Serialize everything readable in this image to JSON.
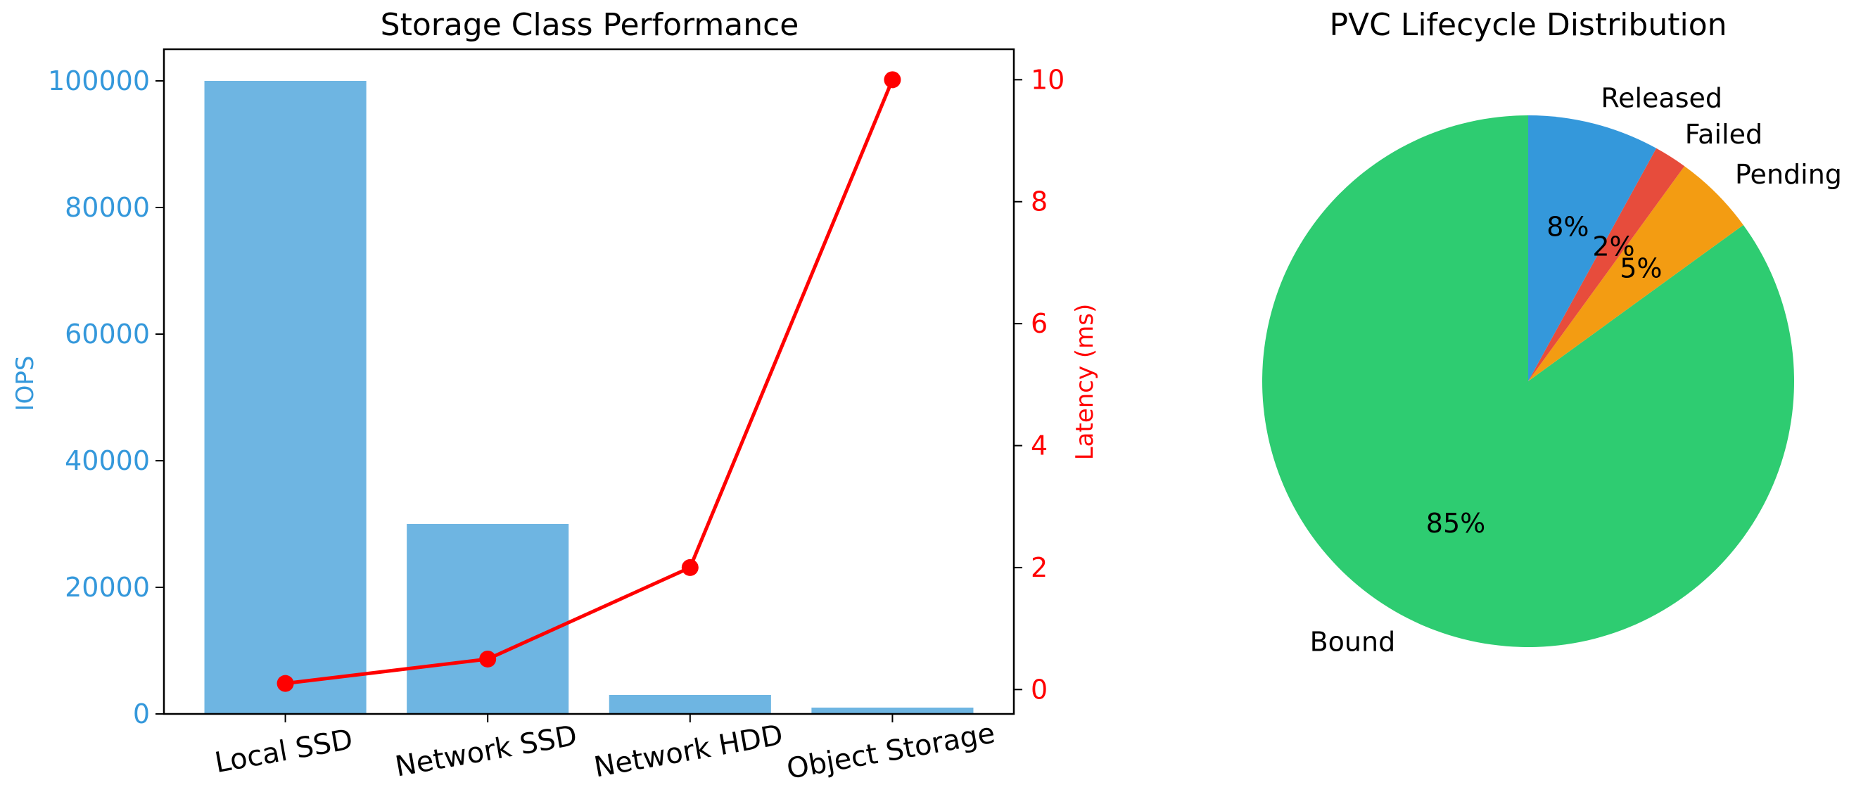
{
  "colors": {
    "bar": "#6eb5e2",
    "iops_axis": "#3498db",
    "latency": "#ff0000",
    "axes": "#000000",
    "background": "#ffffff"
  },
  "chart_data": [
    {
      "type": "bar",
      "title": "Storage Class Performance",
      "categories": [
        "Local SSD",
        "Network SSD",
        "Network HDD",
        "Object Storage"
      ],
      "series": [
        {
          "name": "IOPS",
          "axis": "left",
          "kind": "bar",
          "values": [
            100000,
            30000,
            3000,
            1000
          ]
        },
        {
          "name": "Latency (ms)",
          "axis": "right",
          "kind": "line",
          "values": [
            0.1,
            0.5,
            2,
            10
          ]
        }
      ],
      "ylabel": "IOPS",
      "ylabel_right": "Latency (ms)",
      "ylim": [
        0,
        105000
      ],
      "ylim_right": [
        -0.4,
        10.5
      ],
      "yticks": [
        "0",
        "20000",
        "40000",
        "60000",
        "80000",
        "100000"
      ],
      "yticks_right": [
        "0",
        "2",
        "4",
        "6",
        "8",
        "10"
      ],
      "grid": false,
      "legend": "none"
    },
    {
      "type": "pie",
      "title": "PVC Lifecycle Distribution",
      "slices": [
        {
          "label": "Bound",
          "value": 85,
          "pct_label": "85%",
          "color": "#2ecc71"
        },
        {
          "label": "Pending",
          "value": 5,
          "pct_label": "5%",
          "color": "#f39c12"
        },
        {
          "label": "Failed",
          "value": 2,
          "pct_label": "2%",
          "color": "#e74c3c"
        },
        {
          "label": "Released",
          "value": 8,
          "pct_label": "8%",
          "color": "#3498db"
        }
      ]
    }
  ]
}
